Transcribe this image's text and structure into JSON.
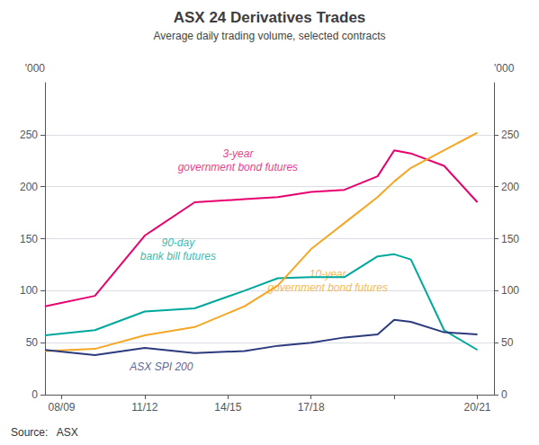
{
  "chart_data": {
    "type": "line",
    "title": "ASX 24 Derivatives Trades",
    "subtitle": "Average daily trading volume, selected contracts",
    "ylabel": "'000",
    "y2label": "'000",
    "source": "Source:   ASX",
    "x": [
      2008,
      2009.5,
      2011,
      2012.5,
      2014,
      2015,
      2016,
      2017,
      2018,
      2018.5,
      2019,
      2020,
      2021
    ],
    "xlim": [
      2008,
      2021.5
    ],
    "xticks": [
      {
        "value": 2008.5,
        "label": "08/09"
      },
      {
        "value": 2011,
        "label": "11/12"
      },
      {
        "value": 2013.5,
        "label": "14/15"
      },
      {
        "value": 2016,
        "label": "17/18"
      },
      {
        "value": 2018.5,
        "label": null
      },
      {
        "value": 2021,
        "label": "20/21"
      }
    ],
    "ylim": [
      0,
      300
    ],
    "yticks": [
      0,
      50,
      100,
      150,
      200,
      250
    ],
    "y2lim": [
      0,
      300
    ],
    "y2ticks": [
      0,
      50,
      100,
      150,
      200,
      250
    ],
    "grid": true,
    "series": [
      {
        "color": "#e8006e",
        "values": [
          85,
          95,
          153,
          185,
          188,
          190,
          195,
          197,
          210,
          235,
          232,
          220,
          185
        ]
      },
      {
        "color": "#00a89c",
        "values": [
          57,
          62,
          80,
          83,
          100,
          112,
          113,
          113,
          133,
          135,
          130,
          62,
          43
        ]
      },
      {
        "color": "#f5a623",
        "values": [
          42,
          44,
          57,
          65,
          85,
          105,
          140,
          165,
          190,
          205,
          218,
          235,
          252
        ]
      },
      {
        "color": "#2c3a7e",
        "values": [
          43,
          38,
          45,
          40,
          42,
          47,
          50,
          55,
          58,
          72,
          70,
          60,
          58
        ]
      }
    ],
    "annotations": [
      {
        "x": 2013.8,
        "y": 212,
        "text": "3-year\ngovernment bond futures",
        "color": "#e8006e"
      },
      {
        "x": 2012.0,
        "y": 127,
        "text": "90-day\nbank bill futures",
        "color": "#00a89c"
      },
      {
        "x": 2016.5,
        "y": 96,
        "text": "10-year\ngovernment bond futures",
        "color": "#f5a623"
      },
      {
        "x": 2011.5,
        "y": 20,
        "text": "ASX SPI 200",
        "color": "#2c3a7e"
      }
    ]
  }
}
